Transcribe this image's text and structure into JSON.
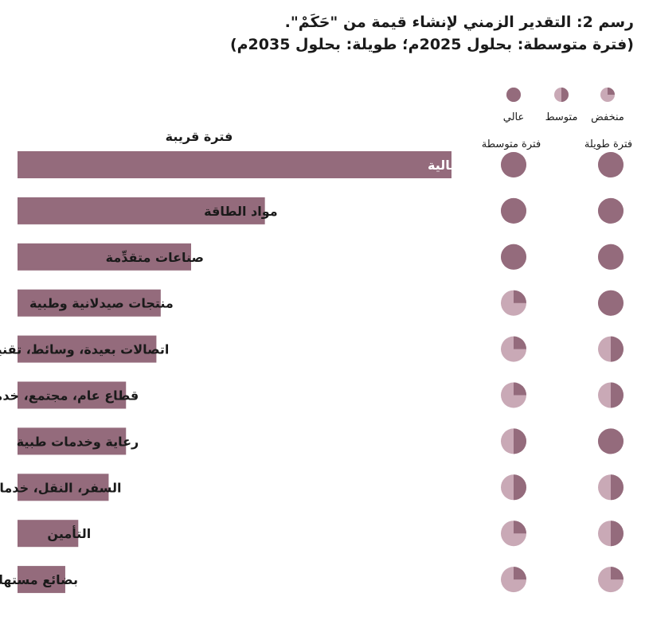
{
  "title": "رسم 2: التقدير الزمني لإنشاء قيمة من \"حَكَمْ\".",
  "subtitle": "(فترة متوسطة: بحلول 2025م؛ طويلة: بحلول 2035م)",
  "colors": {
    "bar": "#946b7c",
    "pie_dark": "#946b7c",
    "pie_light": "#c9a9b6",
    "bar_label_inside": "#ffffff",
    "text": "#1a1a1a"
  },
  "chart_data": {
    "type": "bar",
    "orientation": "horizontal",
    "bar_column_header": "فترة قريبة",
    "categories": [
      "مالية",
      "مواد الطاقة",
      "صناعات متقدِّمة",
      "منتجات صيدلانية وطبية",
      "اتصالات بعيدة، وسائط، تقنية",
      "قطاع عام، مجتمع، خدمات مهنية",
      "رعاية وخدمات طبية",
      "السفر، النقل، خدمات لوجستية",
      "التأمين",
      "بضائع مستهلكين"
    ],
    "values": [
      100,
      57,
      40,
      33,
      32,
      25,
      25,
      21,
      14,
      11
    ],
    "xlim": [
      0,
      100
    ],
    "value_note": "relative bar length; no axis printed",
    "pie_columns": [
      {
        "name": "فترة متوسطة",
        "levels": [
          "high",
          "high",
          "high",
          "low",
          "low",
          "low",
          "medium",
          "medium",
          "low",
          "low"
        ]
      },
      {
        "name": "فترة طويلة",
        "levels": [
          "high",
          "high",
          "high",
          "high",
          "medium",
          "medium",
          "high",
          "medium",
          "medium",
          "low"
        ]
      }
    ],
    "level_fractions": {
      "low": 0.25,
      "medium": 0.5,
      "high": 1.0
    },
    "legend": {
      "placement": "top-right",
      "items": [
        {
          "key": "low",
          "label": "منخفض"
        },
        {
          "key": "medium",
          "label": "متوسط"
        },
        {
          "key": "high",
          "label": "عالي"
        }
      ]
    }
  }
}
